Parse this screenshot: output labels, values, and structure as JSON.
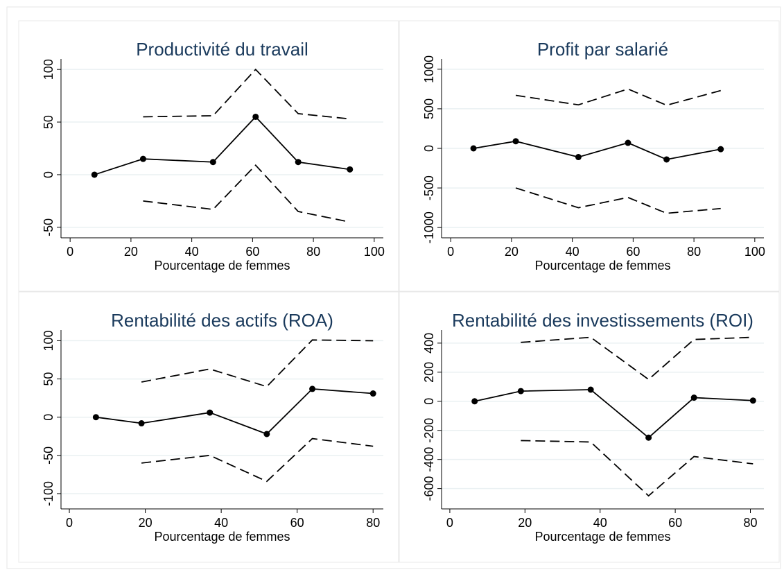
{
  "chart_data": [
    {
      "type": "line",
      "title": "Productivité du travail",
      "xlabel": "Pourcentage de femmes",
      "x": [
        8,
        24,
        47,
        61,
        75,
        92
      ],
      "xlim": [
        -3,
        103
      ],
      "xticks": [
        0,
        20,
        40,
        60,
        80,
        100
      ],
      "ylim": [
        -60,
        110
      ],
      "yticks": [
        -50,
        0,
        50,
        100
      ],
      "grid": true,
      "series": [
        {
          "color": "#000000",
          "style": "solid",
          "marker": true,
          "values": [
            0,
            15,
            12,
            55,
            12,
            5
          ]
        },
        {
          "color": "#000000",
          "style": "dashed",
          "marker": false,
          "values": [
            null,
            55,
            56,
            100,
            58,
            53
          ]
        },
        {
          "color": "#000000",
          "style": "dashed",
          "marker": false,
          "values": [
            null,
            -25,
            -33,
            9,
            -35,
            -45
          ]
        }
      ]
    },
    {
      "type": "line",
      "title": "Profit par salarié",
      "xlabel": "Pourcentage de femmes",
      "x": [
        7.5,
        21.4,
        42,
        58.3,
        71,
        88.8
      ],
      "xlim": [
        -3,
        103
      ],
      "xticks": [
        0,
        20,
        40,
        60,
        80,
        100
      ],
      "ylim": [
        -1130,
        1130
      ],
      "yticks": [
        -1000,
        -500,
        0,
        500,
        1000
      ],
      "grid": true,
      "series": [
        {
          "color": "#000000",
          "style": "solid",
          "marker": true,
          "values": [
            0,
            90,
            -110,
            70,
            -140,
            -10
          ]
        },
        {
          "color": "#000000",
          "style": "dashed",
          "marker": false,
          "values": [
            null,
            670,
            550,
            750,
            545,
            730
          ]
        },
        {
          "color": "#000000",
          "style": "dashed",
          "marker": false,
          "values": [
            null,
            -500,
            -750,
            -620,
            -820,
            -760
          ]
        }
      ]
    },
    {
      "type": "line",
      "title": "Rentabilité des actifs (ROA)",
      "xlabel": "Pourcentage de femmes",
      "x": [
        7,
        19,
        37,
        52,
        64,
        80
      ],
      "xlim": [
        -2.2,
        82.7
      ],
      "xticks": [
        0,
        20,
        40,
        60,
        80
      ],
      "ylim": [
        -120,
        114
      ],
      "yticks": [
        -100,
        -50,
        0,
        50,
        100
      ],
      "grid": true,
      "series": [
        {
          "color": "#000000",
          "style": "solid",
          "marker": true,
          "values": [
            0,
            -8,
            6,
            -22,
            37,
            31
          ]
        },
        {
          "color": "#000000",
          "style": "dashed",
          "marker": false,
          "values": [
            null,
            46,
            63,
            40,
            101,
            100
          ]
        },
        {
          "color": "#000000",
          "style": "dashed",
          "marker": false,
          "values": [
            null,
            -60,
            -50,
            -84,
            -28,
            -38
          ]
        }
      ]
    },
    {
      "type": "line",
      "title": "Rentabilité des investissements (ROI)",
      "xlabel": "Pourcentage de femmes",
      "x": [
        6.6,
        18.9,
        37.5,
        52.9,
        65,
        80.7
      ],
      "xlim": [
        -2.2,
        83.6
      ],
      "xticks": [
        0,
        20,
        40,
        60,
        80
      ],
      "ylim": [
        -740,
        490
      ],
      "yticks": [
        -600,
        -400,
        -200,
        0,
        200,
        400
      ],
      "grid": true,
      "series": [
        {
          "color": "#000000",
          "style": "solid",
          "marker": true,
          "values": [
            0,
            70,
            80,
            -250,
            25,
            5
          ]
        },
        {
          "color": "#000000",
          "style": "dashed",
          "marker": false,
          "values": [
            null,
            405,
            440,
            150,
            425,
            440
          ]
        },
        {
          "color": "#000000",
          "style": "dashed",
          "marker": false,
          "values": [
            null,
            -270,
            -280,
            -650,
            -380,
            -430
          ]
        }
      ]
    }
  ]
}
